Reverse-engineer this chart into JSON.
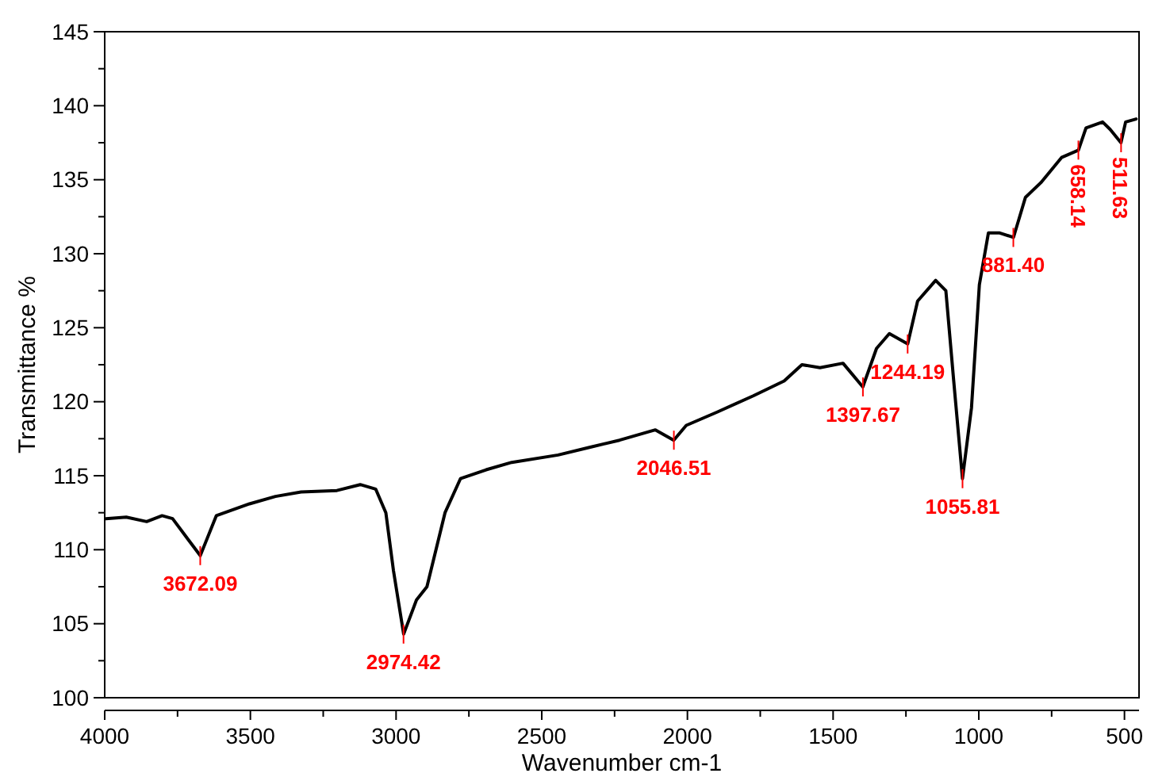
{
  "chart_data": {
    "type": "line",
    "xlabel": "Wavenumber cm-1",
    "ylabel": "Transmittance %",
    "xlim": [
      4000,
      450
    ],
    "ylim": [
      100,
      145
    ],
    "xticks": [
      4000,
      {
        "value": 3750,
        "label": null
      },
      3500,
      {
        "value": 3250,
        "label": null
      },
      3000,
      {
        "value": 2750,
        "label": null
      },
      2500,
      {
        "value": 2250,
        "label": null
      },
      2000,
      {
        "value": 1750,
        "label": null
      },
      1500,
      {
        "value": 1250,
        "label": null
      },
      1000,
      {
        "value": 750,
        "label": null
      },
      500
    ],
    "yticks": [
      100,
      {
        "value": 102.5,
        "label": null
      },
      105,
      {
        "value": 107.5,
        "label": null
      },
      110,
      {
        "value": 112.5,
        "label": null
      },
      115,
      {
        "value": 117.5,
        "label": null
      },
      120,
      {
        "value": 122.5,
        "label": null
      },
      125,
      {
        "value": 127.5,
        "label": null
      },
      130,
      {
        "value": 132.5,
        "label": null
      },
      135,
      {
        "value": 137.5,
        "label": null
      },
      140,
      {
        "value": 142.5,
        "label": null
      },
      145
    ],
    "grid": false,
    "marker": "none",
    "line_style": "solid",
    "series": [
      {
        "color": "#000000",
        "x": [
          3996,
          3926,
          3856,
          3803,
          3767,
          3714,
          3672,
          3617,
          3503,
          3414,
          3326,
          3203,
          3123,
          3070,
          3035,
          3009,
          2974,
          2930,
          2894,
          2832,
          2779,
          2691,
          2603,
          2444,
          2339,
          2233,
          2110,
          2047,
          2004,
          1898,
          1774,
          1668,
          1607,
          1545,
          1466,
          1398,
          1351,
          1307,
          1244,
          1210,
          1148,
          1113,
          1086,
          1056,
          1025,
          998,
          967,
          928,
          881,
          840,
          787,
          716,
          658,
          632,
          575,
          549,
          512,
          496,
          460
        ],
        "values": [
          112.1,
          112.2,
          111.9,
          112.3,
          112.1,
          110.7,
          109.6,
          112.3,
          113.1,
          113.6,
          113.9,
          114.0,
          114.4,
          114.1,
          112.5,
          108.6,
          104.3,
          106.6,
          107.5,
          112.5,
          114.8,
          115.4,
          115.9,
          116.4,
          116.9,
          117.4,
          118.1,
          117.4,
          118.4,
          119.3,
          120.4,
          121.4,
          122.5,
          122.3,
          122.6,
          121.0,
          123.6,
          124.6,
          123.9,
          126.8,
          128.2,
          127.5,
          121.4,
          114.8,
          119.6,
          127.9,
          131.4,
          131.4,
          131.1,
          133.8,
          134.8,
          136.5,
          137.0,
          138.5,
          138.9,
          138.4,
          137.5,
          138.9,
          139.1
        ]
      }
    ],
    "annotations": [
      {
        "text": "3672.09",
        "x": 3672.09,
        "y": 109.6
      },
      {
        "text": "2974.42",
        "x": 2974.42,
        "y": 104.3
      },
      {
        "text": "2046.51",
        "x": 2046.51,
        "y": 117.4
      },
      {
        "text": "1397.67",
        "x": 1397.67,
        "y": 121.0
      },
      {
        "text": "1244.19",
        "x": 1244.19,
        "y": 123.9
      },
      {
        "text": "1055.81",
        "x": 1055.81,
        "y": 114.8
      },
      {
        "text": "881.40",
        "x": 881.4,
        "y": 131.1
      },
      {
        "text": "658.14",
        "x": 658.14,
        "y": 137.0
      },
      {
        "text": "511.63",
        "x": 511.63,
        "y": 137.5
      }
    ]
  }
}
